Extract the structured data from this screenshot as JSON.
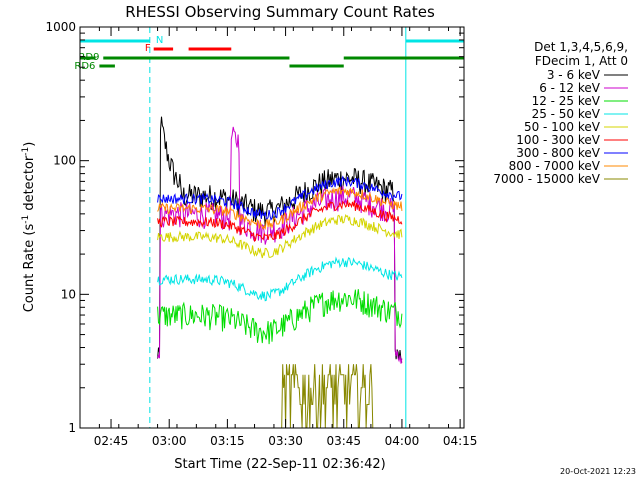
{
  "chart_data": {
    "type": "line",
    "title": "RHESSI Observing Summary Count Rates",
    "xlabel": "Start Time (22-Sep-11 02:36:42)",
    "ylabel_main": "Count Rate (s",
    "ylabel_sup1": "-1",
    "ylabel_mid": " detector",
    "ylabel_sup2": "-1",
    "ylabel_end": ")",
    "y_scale": "log",
    "ylim": [
      1,
      1000
    ],
    "xlim_min": [
      157,
      256
    ],
    "y_ticks": [
      {
        "v": 1,
        "label": "1"
      },
      {
        "v": 10,
        "label": "10"
      },
      {
        "v": 100,
        "label": "100"
      },
      {
        "v": 1000,
        "label": "1000"
      }
    ],
    "x_ticks": [
      {
        "v": 165,
        "label": "02:45"
      },
      {
        "v": 180,
        "label": "03:00"
      },
      {
        "v": 195,
        "label": "03:15"
      },
      {
        "v": 210,
        "label": "03:30"
      },
      {
        "v": 225,
        "label": "03:45"
      },
      {
        "v": 240,
        "label": "04:00"
      },
      {
        "v": 255,
        "label": "04:15"
      }
    ],
    "legend_header": [
      "Det 1,3,4,5,6,9,",
      "FDecim 1, Att 0"
    ],
    "legend_position": "right",
    "series": [
      {
        "name": "3 - 6 keV",
        "color": "#000000",
        "base": 55
      },
      {
        "name": "6 - 12 keV",
        "color": "#cc00cc",
        "base": 40
      },
      {
        "name": "12 - 25 keV",
        "color": "#00dd00",
        "base": 7
      },
      {
        "name": "25 - 50 keV",
        "color": "#00e5e5",
        "base": 13
      },
      {
        "name": "50 - 100 keV",
        "color": "#d4d400",
        "base": 27
      },
      {
        "name": "100 - 300 keV",
        "color": "#ff0000",
        "base": 35
      },
      {
        "name": "300 - 800 keV",
        "color": "#0000ff",
        "base": 52
      },
      {
        "name": "800 - 7000 keV",
        "color": "#ff8800",
        "base": 44
      },
      {
        "name": "7000 - 15000 keV",
        "color": "#888800",
        "base": 1.6
      }
    ],
    "data_window_min": [
      177,
      240
    ],
    "flags": [
      {
        "label": "N",
        "color": "#00e5e5",
        "segments": [
          [
            157,
            175
          ],
          [
            241,
            256
          ]
        ]
      },
      {
        "label": "F",
        "color": "#ff0000",
        "segments": [
          [
            176,
            181
          ],
          [
            185,
            196
          ]
        ]
      },
      {
        "label": "RD9",
        "color": "#008800",
        "segments": [
          [
            157,
            161
          ],
          [
            163,
            211
          ],
          [
            225,
            256
          ]
        ]
      },
      {
        "label": "RD6",
        "color": "#008800",
        "segments": [
          [
            162,
            166
          ],
          [
            211,
            225
          ]
        ]
      }
    ],
    "footer_date": "20-Oct-2021 12:23"
  }
}
